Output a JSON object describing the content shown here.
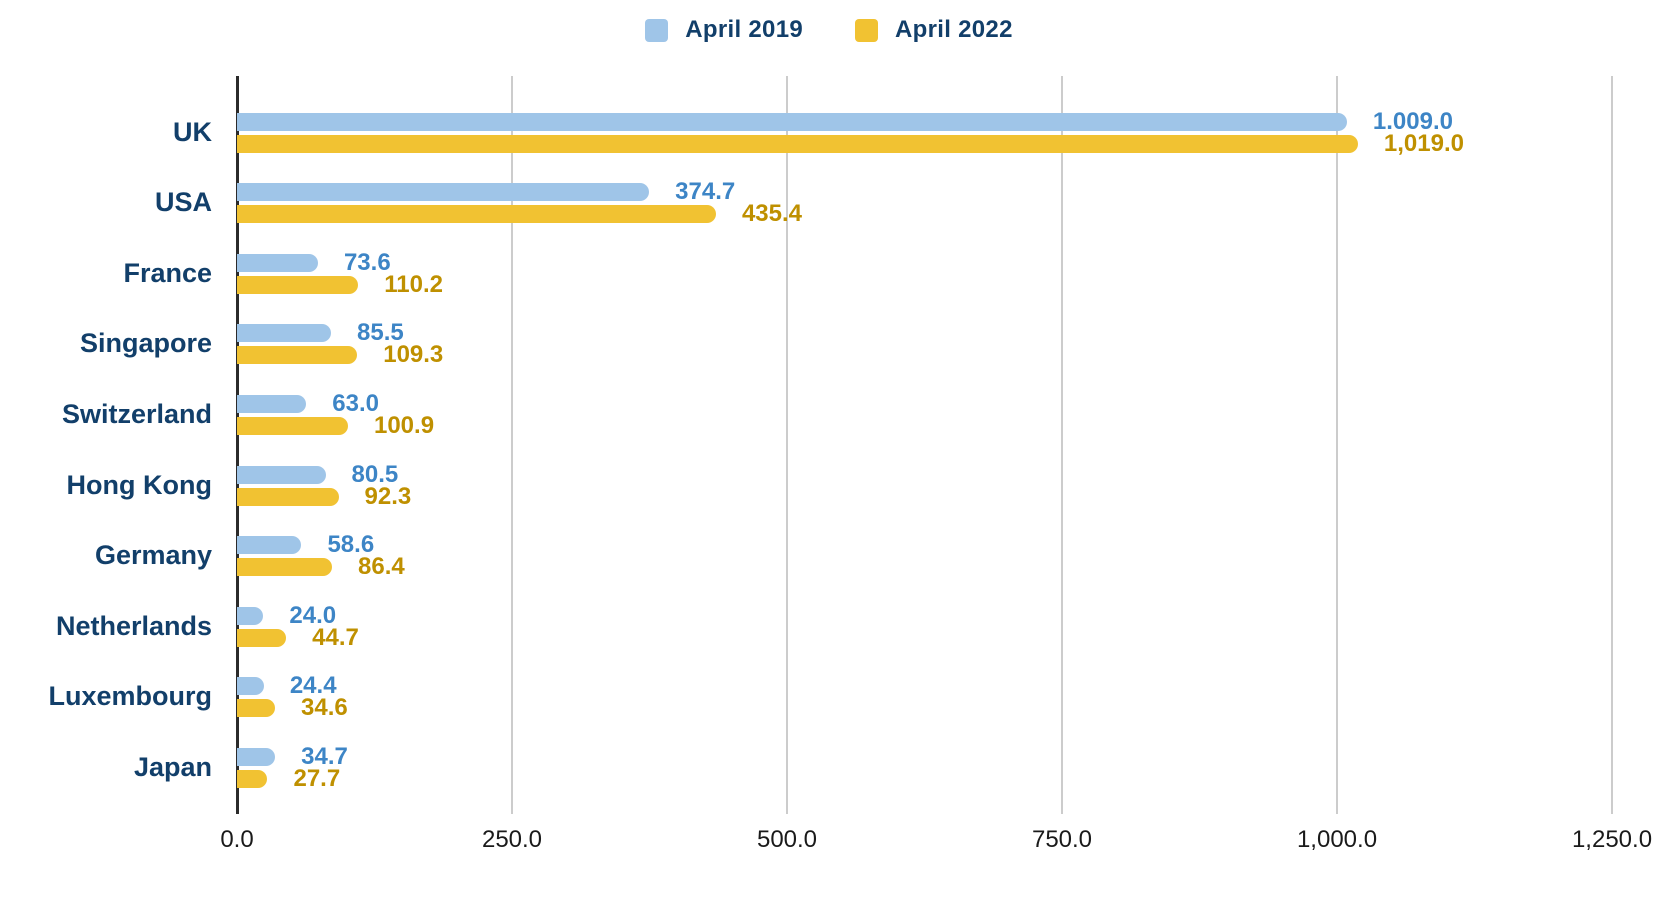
{
  "legend": {
    "items": [
      {
        "label": "April 2019",
        "color": "#9fc5e8"
      },
      {
        "label": "April 2022",
        "color": "#f1c232"
      }
    ]
  },
  "colors": {
    "category_text": "#123f6a",
    "legend_text": "#123f6a",
    "gridline": "#cccccc",
    "axis_line": "#2b2b2b",
    "tick_text": "#1a1a1a",
    "series1_bar": "#9fc5e8",
    "series1_label": "#3d85c6",
    "series2_bar": "#f1c232",
    "series2_label": "#bf9000",
    "background": "#ffffff"
  },
  "chart_data": {
    "type": "bar",
    "orientation": "horizontal",
    "title": "",
    "xlabel": "",
    "ylabel": "",
    "grid": true,
    "legend_position": "top",
    "categories": [
      "UK",
      "USA",
      "France",
      "Singapore",
      "Switzerland",
      "Hong Kong",
      "Germany",
      "Netherlands",
      "Luxembourg",
      "Japan"
    ],
    "series": [
      {
        "name": "April 2019",
        "bar_color": "#9fc5e8",
        "label_color": "#3d85c6",
        "values": [
          1009.0,
          374.7,
          73.6,
          85.5,
          63.0,
          80.5,
          58.6,
          24.0,
          24.4,
          34.7
        ],
        "value_labels": [
          "1.009.0",
          "374.7",
          "73.6",
          "85.5",
          "63.0",
          "80.5",
          "58.6",
          "24.0",
          "24.4",
          "34.7"
        ]
      },
      {
        "name": "April 2022",
        "bar_color": "#f1c232",
        "label_color": "#bf9000",
        "values": [
          1019.0,
          435.4,
          110.2,
          109.3,
          100.9,
          92.3,
          86.4,
          44.7,
          34.6,
          27.7
        ],
        "value_labels": [
          "1,019.0",
          "435.4",
          "110.2",
          "109.3",
          "100.9",
          "92.3",
          "86.4",
          "44.7",
          "34.6",
          "27.7"
        ]
      }
    ],
    "x_axis": {
      "range": [
        0,
        1250
      ],
      "ticks": [
        0,
        250,
        500,
        750,
        1000,
        1250
      ],
      "tick_labels": [
        "0.0",
        "250.0",
        "500.0",
        "750.0",
        "1,000.0",
        "1,250.0"
      ]
    }
  }
}
